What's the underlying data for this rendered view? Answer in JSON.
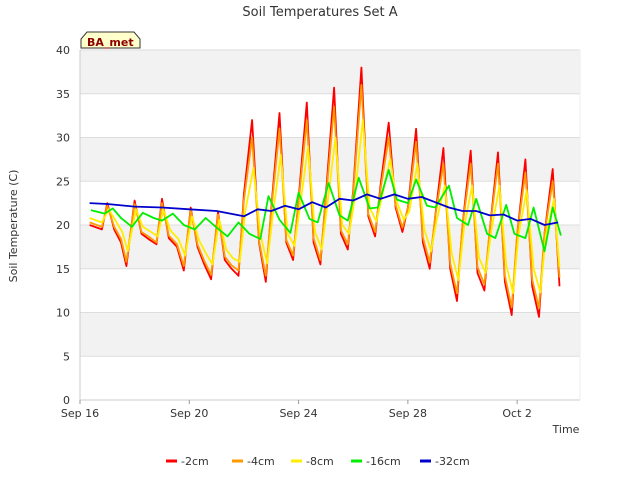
{
  "chart_data": {
    "type": "line",
    "title": "Soil Temperatures Set A",
    "xlabel": "Time",
    "ylabel": "Soil Temperature (C)",
    "badge": "BA_met",
    "ylim": [
      0,
      40
    ],
    "yticks": [
      "0",
      "5",
      "10",
      "15",
      "20",
      "25",
      "30",
      "35",
      "40"
    ],
    "xlim": [
      0,
      18.3
    ],
    "xticks": [
      {
        "day": 0,
        "label": "Sep 16"
      },
      {
        "day": 4,
        "label": "Sep 20"
      },
      {
        "day": 8,
        "label": "Sep 24"
      },
      {
        "day": 12,
        "label": "Sep 28"
      },
      {
        "day": 16,
        "label": "Oct 2"
      }
    ],
    "grid": true,
    "legend_position": "bottom",
    "x_unit": "days since Sep 16 00:00",
    "series": [
      {
        "name": "-2cm",
        "color": "#ff0000",
        "x": [
          0.35,
          0.8,
          1.0,
          1.25,
          1.5,
          1.7,
          2.0,
          2.25,
          2.55,
          2.8,
          3.0,
          3.25,
          3.55,
          3.8,
          4.05,
          4.3,
          4.55,
          4.8,
          5.05,
          5.3,
          5.55,
          5.8,
          6.0,
          6.3,
          6.55,
          6.8,
          7.0,
          7.3,
          7.55,
          7.8,
          8.0,
          8.3,
          8.55,
          8.8,
          9.0,
          9.3,
          9.55,
          9.8,
          10.0,
          10.3,
          10.55,
          10.8,
          11.0,
          11.3,
          11.55,
          11.8,
          12.0,
          12.3,
          12.55,
          12.8,
          13.0,
          13.3,
          13.55,
          13.8,
          14.0,
          14.3,
          14.55,
          14.8,
          15.0,
          15.3,
          15.55,
          15.8,
          16.0,
          16.3,
          16.55,
          16.8,
          17.0,
          17.3,
          17.55
        ],
        "y": [
          20.0,
          19.5,
          22.5,
          19.5,
          18.0,
          15.3,
          22.8,
          19.0,
          18.3,
          17.8,
          23.0,
          18.5,
          17.5,
          14.8,
          22.0,
          17.5,
          15.5,
          13.8,
          21.5,
          16.0,
          15.0,
          14.2,
          23.5,
          32.0,
          18.0,
          13.5,
          22.0,
          32.8,
          18.0,
          16.0,
          23.0,
          34.0,
          18.0,
          15.5,
          23.5,
          35.7,
          19.0,
          17.2,
          24.0,
          38.0,
          21.0,
          18.7,
          24.5,
          31.7,
          22.0,
          19.2,
          22.0,
          31.0,
          18.0,
          15.0,
          21.0,
          28.8,
          15.0,
          11.3,
          20.0,
          28.5,
          14.5,
          12.5,
          19.5,
          28.3,
          13.5,
          9.7,
          19.0,
          27.5,
          13.0,
          9.5,
          19.0,
          26.4,
          13.0
        ]
      },
      {
        "name": "-4cm",
        "color": "#ff9900",
        "x": [
          0.35,
          0.8,
          1.0,
          1.25,
          1.5,
          1.7,
          2.0,
          2.25,
          2.55,
          2.8,
          3.0,
          3.25,
          3.55,
          3.8,
          4.05,
          4.3,
          4.55,
          4.8,
          5.05,
          5.3,
          5.55,
          5.8,
          6.0,
          6.3,
          6.55,
          6.8,
          7.0,
          7.3,
          7.55,
          7.8,
          8.0,
          8.3,
          8.55,
          8.8,
          9.0,
          9.3,
          9.55,
          9.8,
          10.0,
          10.3,
          10.55,
          10.8,
          11.0,
          11.3,
          11.55,
          11.8,
          12.0,
          12.3,
          12.55,
          12.8,
          13.0,
          13.3,
          13.55,
          13.8,
          14.0,
          14.3,
          14.55,
          14.8,
          15.0,
          15.3,
          15.55,
          15.8,
          16.0,
          16.3,
          16.55,
          16.8,
          17.0,
          17.3,
          17.55
        ],
        "y": [
          20.3,
          19.8,
          22.2,
          19.8,
          18.4,
          15.8,
          22.4,
          19.2,
          18.6,
          18.0,
          22.5,
          18.8,
          17.8,
          15.3,
          21.7,
          17.8,
          15.9,
          14.3,
          21.2,
          16.4,
          15.4,
          14.8,
          22.8,
          30.0,
          18.2,
          14.2,
          21.7,
          31.0,
          18.3,
          16.5,
          22.6,
          32.0,
          18.5,
          16.0,
          23.0,
          33.5,
          19.4,
          17.8,
          23.6,
          36.0,
          21.3,
          19.2,
          24.0,
          30.0,
          22.3,
          19.7,
          21.9,
          29.5,
          18.6,
          15.7,
          20.9,
          27.0,
          15.6,
          12.2,
          19.9,
          27.0,
          15.2,
          13.2,
          19.5,
          27.0,
          14.2,
          10.6,
          19.0,
          26.0,
          13.8,
          10.5,
          19.0,
          25.0,
          14.0
        ]
      },
      {
        "name": "-8cm",
        "color": "#ffee00",
        "x": [
          0.35,
          0.8,
          1.05,
          1.3,
          1.55,
          1.75,
          2.05,
          2.3,
          2.6,
          2.85,
          3.05,
          3.3,
          3.6,
          3.85,
          4.1,
          4.35,
          4.6,
          4.85,
          5.1,
          5.35,
          5.6,
          5.85,
          6.05,
          6.35,
          6.6,
          6.85,
          7.05,
          7.35,
          7.6,
          7.85,
          8.05,
          8.35,
          8.6,
          8.85,
          9.05,
          9.35,
          9.6,
          9.85,
          10.05,
          10.35,
          10.6,
          10.85,
          11.05,
          11.35,
          11.6,
          11.85,
          12.05,
          12.35,
          12.6,
          12.85,
          13.05,
          13.35,
          13.6,
          13.85,
          14.05,
          14.35,
          14.6,
          14.85,
          15.05,
          15.35,
          15.6,
          15.85,
          16.05,
          16.35,
          16.6,
          16.85,
          17.05,
          17.35,
          17.55
        ],
        "y": [
          20.8,
          20.3,
          21.8,
          20.5,
          19.2,
          17.0,
          21.8,
          19.8,
          19.2,
          18.7,
          21.8,
          19.4,
          18.4,
          16.5,
          21.0,
          18.3,
          16.8,
          15.5,
          20.6,
          17.2,
          16.2,
          15.8,
          21.6,
          26.5,
          19.0,
          15.6,
          21.0,
          28.0,
          19.0,
          17.6,
          22.0,
          29.0,
          19.2,
          17.2,
          22.3,
          30.0,
          20.0,
          19.0,
          23.0,
          32.0,
          22.0,
          20.4,
          23.2,
          27.5,
          22.6,
          20.6,
          21.5,
          27.0,
          19.5,
          17.0,
          20.5,
          24.5,
          16.8,
          13.7,
          19.6,
          24.5,
          16.3,
          14.5,
          19.2,
          24.5,
          15.5,
          12.2,
          18.8,
          24.0,
          15.0,
          12.3,
          18.8,
          23.0,
          15.2
        ]
      },
      {
        "name": "-16cm",
        "color": "#00ee00",
        "x": [
          0.4,
          0.9,
          1.2,
          1.5,
          1.9,
          2.3,
          2.7,
          3.0,
          3.4,
          3.8,
          4.2,
          4.6,
          5.0,
          5.4,
          5.8,
          6.2,
          6.6,
          6.9,
          7.3,
          7.7,
          8.0,
          8.4,
          8.7,
          9.1,
          9.5,
          9.8,
          10.2,
          10.6,
          10.9,
          11.3,
          11.6,
          12.0,
          12.3,
          12.7,
          13.0,
          13.5,
          13.8,
          14.2,
          14.5,
          14.9,
          15.2,
          15.6,
          15.9,
          16.3,
          16.6,
          17.0,
          17.3,
          17.6
        ],
        "y": [
          21.7,
          21.3,
          21.9,
          20.8,
          19.8,
          21.4,
          20.8,
          20.5,
          21.3,
          20.0,
          19.5,
          20.8,
          19.7,
          18.7,
          20.3,
          19.0,
          18.4,
          23.3,
          20.6,
          19.1,
          23.7,
          20.7,
          20.3,
          24.8,
          21.1,
          20.5,
          25.4,
          21.9,
          22.0,
          26.3,
          22.9,
          22.5,
          25.2,
          22.2,
          22.0,
          24.5,
          20.8,
          20.0,
          23.0,
          19.0,
          18.5,
          22.3,
          19.0,
          18.5,
          22.0,
          17.0,
          22.0,
          18.8
        ]
      },
      {
        "name": "-32cm",
        "color": "#0000cc",
        "x": [
          0.35,
          1.0,
          2.0,
          3.0,
          4.0,
          5.0,
          5.5,
          6.0,
          6.5,
          7.0,
          7.5,
          8.0,
          8.5,
          9.0,
          9.5,
          10.0,
          10.5,
          11.0,
          11.5,
          12.0,
          12.5,
          13.0,
          13.5,
          14.0,
          14.5,
          15.0,
          15.5,
          16.0,
          16.5,
          17.0,
          17.5
        ],
        "y": [
          22.5,
          22.4,
          22.1,
          22.0,
          21.8,
          21.6,
          21.3,
          21.0,
          21.8,
          21.6,
          22.2,
          21.8,
          22.6,
          22.0,
          23.0,
          22.8,
          23.5,
          23.0,
          23.5,
          23.0,
          23.2,
          22.6,
          22.0,
          21.6,
          21.6,
          21.1,
          21.2,
          20.5,
          20.7,
          20.0,
          20.3
        ]
      }
    ]
  }
}
